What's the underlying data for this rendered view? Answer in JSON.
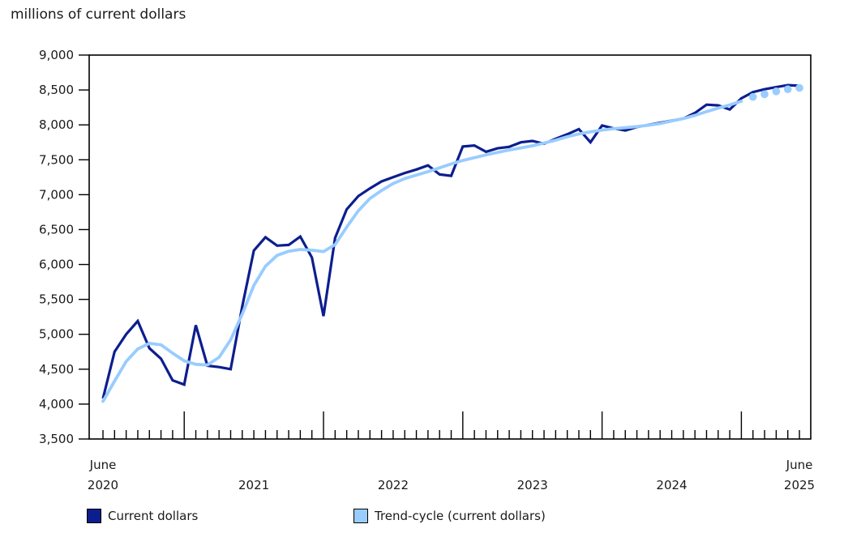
{
  "title": "millions of current dollars",
  "legend": [
    {
      "label": "Current dollars",
      "color": "#0c1e8e"
    },
    {
      "label": "Trend-cycle (current dollars)",
      "color": "#99ccff"
    }
  ],
  "chart_data": {
    "type": "line",
    "title": "millions of current dollars",
    "ylabel": "millions of current dollars",
    "xlabel": "",
    "grid": false,
    "legend_position": "bottom",
    "x_monthly": [
      "2020-06",
      "2020-07",
      "2020-08",
      "2020-09",
      "2020-10",
      "2020-11",
      "2020-12",
      "2021-01",
      "2021-02",
      "2021-03",
      "2021-04",
      "2021-05",
      "2021-06",
      "2021-07",
      "2021-08",
      "2021-09",
      "2021-10",
      "2021-11",
      "2021-12",
      "2022-01",
      "2022-02",
      "2022-03",
      "2022-04",
      "2022-05",
      "2022-06",
      "2022-07",
      "2022-08",
      "2022-09",
      "2022-10",
      "2022-11",
      "2022-12",
      "2023-01",
      "2023-02",
      "2023-03",
      "2023-04",
      "2023-05",
      "2023-06",
      "2023-07",
      "2023-08",
      "2023-09",
      "2023-10",
      "2023-11",
      "2023-12",
      "2024-01",
      "2024-02",
      "2024-03",
      "2024-04",
      "2024-05",
      "2024-06",
      "2024-07",
      "2024-08",
      "2024-09",
      "2024-10",
      "2024-11",
      "2024-12",
      "2025-01",
      "2025-02",
      "2025-03",
      "2025-04",
      "2025-05",
      "2025-06"
    ],
    "series": [
      {
        "name": "Current dollars",
        "color": "#0c1e8e",
        "style": "solid",
        "line_width": 3.2,
        "values": [
          4080,
          4750,
          5000,
          5190,
          4800,
          4650,
          4340,
          4280,
          5130,
          4550,
          4530,
          4500,
          5400,
          6200,
          6390,
          6270,
          6280,
          6400,
          6100,
          5260,
          6380,
          6790,
          6980,
          7090,
          7190,
          7250,
          7310,
          7360,
          7420,
          7290,
          7270,
          7690,
          7705,
          7615,
          7665,
          7685,
          7750,
          7770,
          7730,
          7800,
          7865,
          7940,
          7750,
          7990,
          7950,
          7920,
          7970,
          8000,
          8030,
          8060,
          8090,
          8170,
          8290,
          8280,
          8220,
          8380,
          8470,
          8510,
          8540,
          8570,
          8560
        ]
      },
      {
        "name": "Trend-cycle (current dollars)",
        "color": "#99ccff",
        "style": "solid-then-dotted",
        "dotted_from_index": 56,
        "line_width": 3.8,
        "dot_radius": 4.8,
        "values": [
          4040,
          4330,
          4610,
          4790,
          4870,
          4850,
          4730,
          4620,
          4570,
          4560,
          4670,
          4920,
          5290,
          5700,
          5975,
          6130,
          6190,
          6215,
          6205,
          6185,
          6285,
          6535,
          6770,
          6945,
          7060,
          7160,
          7230,
          7280,
          7330,
          7385,
          7440,
          7490,
          7530,
          7570,
          7605,
          7640,
          7670,
          7700,
          7740,
          7780,
          7830,
          7870,
          7900,
          7925,
          7945,
          7960,
          7975,
          7995,
          8020,
          8055,
          8090,
          8135,
          8190,
          8240,
          8285,
          8340,
          8400,
          8440,
          8480,
          8510,
          8530
        ]
      }
    ],
    "y_axis": {
      "min": 3500,
      "max": 9000,
      "tick_step": 500,
      "ticks": [
        {
          "v": 3500,
          "label": "3,500"
        },
        {
          "v": 4000,
          "label": "4,000"
        },
        {
          "v": 4500,
          "label": "4,500"
        },
        {
          "v": 5000,
          "label": "5,000"
        },
        {
          "v": 5500,
          "label": "5,500"
        },
        {
          "v": 6000,
          "label": "6,000"
        },
        {
          "v": 6500,
          "label": "6,500"
        },
        {
          "v": 7000,
          "label": "7,000"
        },
        {
          "v": 7500,
          "label": "7,500"
        },
        {
          "v": 8000,
          "label": "8,000"
        },
        {
          "v": 8500,
          "label": "8,500"
        },
        {
          "v": 9000,
          "label": "9,000"
        }
      ]
    },
    "x_axis": {
      "minor_ticks": "monthly",
      "major_tick_months": [
        "2021-01",
        "2022-01",
        "2023-01",
        "2024-01",
        "2025-01"
      ],
      "labels": [
        {
          "month": "2020-06",
          "line1": "June",
          "line2": "2020"
        },
        {
          "month": "2021-07",
          "line1": "",
          "line2": "2021"
        },
        {
          "month": "2022-07",
          "line1": "",
          "line2": "2022"
        },
        {
          "month": "2023-07",
          "line1": "",
          "line2": "2023"
        },
        {
          "month": "2024-07",
          "line1": "",
          "line2": "2024"
        },
        {
          "month": "2025-06",
          "line1": "June",
          "line2": "2025"
        }
      ]
    }
  }
}
